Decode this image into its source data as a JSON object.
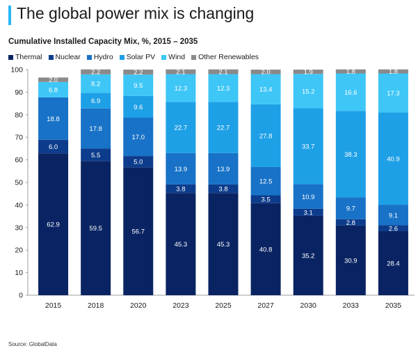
{
  "page": {
    "title": "The global power mix is changing",
    "source": "Source: GlobalData"
  },
  "chart_data": {
    "type": "bar",
    "stacked": true,
    "title": "Cumulative Installed Capacity Mix, %, 2015 – 2035",
    "xlabel": "",
    "ylabel": "",
    "ylim": [
      0,
      100
    ],
    "yticks": [
      0,
      10,
      20,
      30,
      40,
      50,
      60,
      70,
      80,
      90,
      100
    ],
    "categories": [
      "2015",
      "2018",
      "2020",
      "2023",
      "2025",
      "2027",
      "2030",
      "2033",
      "2035"
    ],
    "legend_position": "top-left",
    "grid": false,
    "series": [
      {
        "name": "Thermal",
        "color": "#0a2463",
        "label_color": "#ffffff",
        "values": [
          62.9,
          59.5,
          56.7,
          45.3,
          45.3,
          40.8,
          35.2,
          30.9,
          28.4
        ]
      },
      {
        "name": "Nuclear",
        "color": "#0d3c8c",
        "label_color": "#ffffff",
        "values": [
          6.0,
          5.5,
          5.0,
          3.8,
          3.8,
          3.5,
          3.1,
          2.8,
          2.6
        ]
      },
      {
        "name": "Hydro",
        "color": "#1872c7",
        "label_color": "#ffffff",
        "values": [
          18.8,
          17.8,
          17.0,
          13.9,
          13.9,
          12.5,
          10.9,
          9.7,
          9.1
        ]
      },
      {
        "name": "Solar PV",
        "color": "#1ea0e6",
        "label_color": "#ffffff",
        "values": [
          0.0,
          6.9,
          9.6,
          22.7,
          22.7,
          27.8,
          33.7,
          38.3,
          40.9
        ]
      },
      {
        "name": "Wind",
        "color": "#3ec6f7",
        "label_color": "#ffffff",
        "values": [
          6.8,
          8.2,
          9.5,
          12.3,
          12.3,
          13.4,
          15.2,
          16.6,
          17.3
        ]
      },
      {
        "name": "Other Renewables",
        "color": "#8a8a8a",
        "label_color": "#ffffff",
        "values": [
          2.0,
          2.2,
          2.2,
          2.1,
          2.1,
          2.0,
          1.9,
          1.8,
          1.8
        ]
      }
    ]
  }
}
